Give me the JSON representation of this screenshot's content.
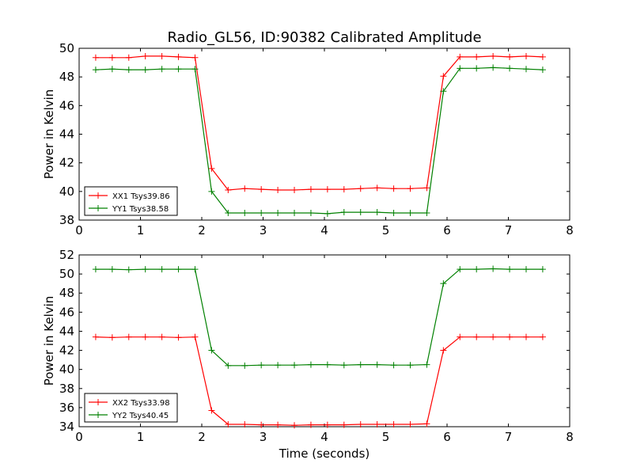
{
  "figure": {
    "title": "Radio_GL56, ID:90382 Calibrated Amplitude",
    "xlabel": "Time (seconds)"
  },
  "chart_data": [
    {
      "type": "line",
      "title": "Radio_GL56, ID:90382 Calibrated Amplitude",
      "xlabel": "",
      "ylabel": "Power in Kelvin",
      "xlim": [
        0,
        8
      ],
      "ylim": [
        38,
        50
      ],
      "xticks": [
        0,
        1,
        2,
        3,
        4,
        5,
        6,
        7,
        8
      ],
      "yticks": [
        38,
        40,
        42,
        44,
        46,
        48,
        50
      ],
      "grid": false,
      "legend": "lower-left",
      "series": [
        {
          "name": "XX1 Tsys39.86",
          "color": "#ff0000",
          "marker": "plus",
          "x": [
            0.27,
            0.54,
            0.81,
            1.08,
            1.35,
            1.62,
            1.89,
            2.16,
            2.43,
            2.7,
            2.97,
            3.24,
            3.51,
            3.78,
            4.05,
            4.32,
            4.59,
            4.86,
            5.13,
            5.4,
            5.67,
            5.94,
            6.21,
            6.48,
            6.75,
            7.02,
            7.29,
            7.56
          ],
          "y": [
            49.35,
            49.35,
            49.35,
            49.45,
            49.45,
            49.4,
            49.35,
            41.6,
            40.1,
            40.2,
            40.15,
            40.1,
            40.1,
            40.15,
            40.15,
            40.15,
            40.2,
            40.25,
            40.2,
            40.2,
            40.25,
            48.05,
            49.4,
            49.4,
            49.45,
            49.4,
            49.45,
            49.4
          ]
        },
        {
          "name": "YY1 Tsys38.58",
          "color": "#008000",
          "marker": "plus",
          "x": [
            0.27,
            0.54,
            0.81,
            1.08,
            1.35,
            1.62,
            1.89,
            2.16,
            2.43,
            2.7,
            2.97,
            3.24,
            3.51,
            3.78,
            4.05,
            4.32,
            4.59,
            4.86,
            5.13,
            5.4,
            5.67,
            5.94,
            6.21,
            6.48,
            6.75,
            7.02,
            7.29,
            7.56
          ],
          "y": [
            48.5,
            48.55,
            48.5,
            48.5,
            48.55,
            48.55,
            48.55,
            40.0,
            38.5,
            38.5,
            38.5,
            38.5,
            38.5,
            38.5,
            38.45,
            38.55,
            38.55,
            38.55,
            38.5,
            38.5,
            38.5,
            47.0,
            48.6,
            48.6,
            48.65,
            48.6,
            48.55,
            48.5
          ]
        }
      ]
    },
    {
      "type": "line",
      "title": "",
      "xlabel": "Time (seconds)",
      "ylabel": "Power in Kelvin",
      "xlim": [
        0,
        8
      ],
      "ylim": [
        34,
        52
      ],
      "xticks": [
        0,
        1,
        2,
        3,
        4,
        5,
        6,
        7,
        8
      ],
      "yticks": [
        34,
        36,
        38,
        40,
        42,
        44,
        46,
        48,
        50,
        52
      ],
      "grid": false,
      "legend": "lower-left",
      "series": [
        {
          "name": "XX2 Tsys33.98",
          "color": "#ff0000",
          "marker": "plus",
          "x": [
            0.27,
            0.54,
            0.81,
            1.08,
            1.35,
            1.62,
            1.89,
            2.16,
            2.43,
            2.7,
            2.97,
            3.24,
            3.51,
            3.78,
            4.05,
            4.32,
            4.59,
            4.86,
            5.13,
            5.4,
            5.67,
            5.94,
            6.21,
            6.48,
            6.75,
            7.02,
            7.29,
            7.56
          ],
          "y": [
            43.4,
            43.35,
            43.4,
            43.4,
            43.4,
            43.35,
            43.4,
            35.7,
            34.25,
            34.25,
            34.2,
            34.2,
            34.15,
            34.2,
            34.2,
            34.2,
            34.25,
            34.25,
            34.25,
            34.25,
            34.3,
            42.0,
            43.4,
            43.4,
            43.4,
            43.4,
            43.4,
            43.4
          ]
        },
        {
          "name": "YY2 Tsys40.45",
          "color": "#008000",
          "marker": "plus",
          "x": [
            0.27,
            0.54,
            0.81,
            1.08,
            1.35,
            1.62,
            1.89,
            2.16,
            2.43,
            2.7,
            2.97,
            3.24,
            3.51,
            3.78,
            4.05,
            4.32,
            4.59,
            4.86,
            5.13,
            5.4,
            5.67,
            5.94,
            6.21,
            6.48,
            6.75,
            7.02,
            7.29,
            7.56
          ],
          "y": [
            50.5,
            50.5,
            50.45,
            50.5,
            50.5,
            50.5,
            50.5,
            42.0,
            40.4,
            40.4,
            40.45,
            40.45,
            40.45,
            40.5,
            40.5,
            40.45,
            40.5,
            40.5,
            40.45,
            40.45,
            40.5,
            49.0,
            50.5,
            50.5,
            50.55,
            50.5,
            50.5,
            50.5
          ]
        }
      ]
    }
  ]
}
